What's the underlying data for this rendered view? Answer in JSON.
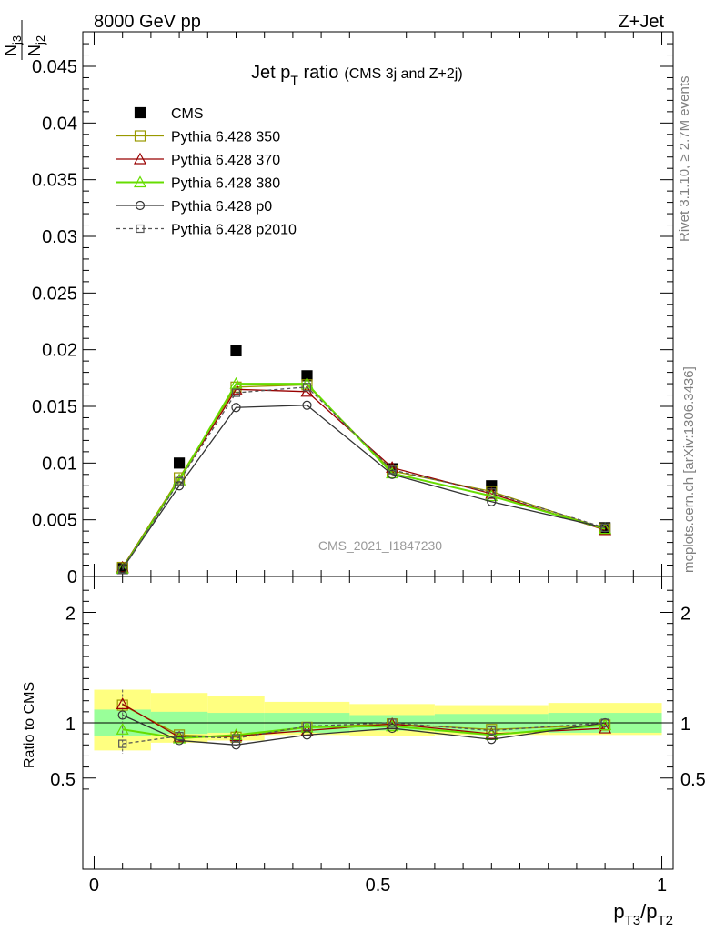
{
  "header": {
    "left": "8000 GeV pp",
    "right": "Z+Jet"
  },
  "side_labels": {
    "rivet": "Rivet 3.1.10, ≥ 2.7M events",
    "mcplots": "mcplots.cern.ch [arXiv:1306.3436]"
  },
  "watermark": "CMS_2021_I1847230",
  "chart_data": [
    {
      "type": "line",
      "title": "Jet p_T ratio",
      "title_main": "Jet p",
      "title_sub": "T",
      "title_main_after": " ratio",
      "title_suffix": "(CMS 3j and Z+2j)",
      "ylabel": "N_j3/N_j2",
      "ylim": [
        0,
        0.048
      ],
      "yticks": [
        "0",
        "0.005",
        "0.01",
        "0.015",
        "0.02",
        "0.025",
        "0.03",
        "0.035",
        "0.04",
        "0.045"
      ],
      "x": [
        0.05,
        0.15,
        0.25,
        0.375,
        0.525,
        0.7,
        0.9
      ],
      "legend_position": "top-left",
      "series": [
        {
          "name": "CMS",
          "values": [
            0.0007,
            0.01,
            0.0199,
            0.0177,
            0.0095,
            0.008,
            0.0043
          ],
          "color": "#000000",
          "marker": "filled-square"
        },
        {
          "name": "Pythia 6.428 350",
          "values": [
            0.0008,
            0.0087,
            0.0167,
            0.0169,
            0.0093,
            0.0075,
            0.0042
          ],
          "color": "#999900",
          "marker": "open-square"
        },
        {
          "name": "Pythia 6.428 370",
          "values": [
            0.0008,
            0.0085,
            0.0165,
            0.0163,
            0.0096,
            0.0073,
            0.0041
          ],
          "color": "#990000",
          "marker": "open-triangle"
        },
        {
          "name": "Pythia 6.428 380",
          "values": [
            0.0007,
            0.0085,
            0.017,
            0.017,
            0.0091,
            0.0071,
            0.0042
          ],
          "color": "#66dd00",
          "marker": "open-triangle"
        },
        {
          "name": "Pythia 6.428 p0",
          "values": [
            0.0007,
            0.008,
            0.0149,
            0.0151,
            0.009,
            0.0066,
            0.0043
          ],
          "color": "#333333",
          "marker": "open-circle"
        },
        {
          "name": "Pythia 6.428 p2010",
          "values": [
            0.0006,
            0.0084,
            0.0162,
            0.0167,
            0.0094,
            0.0074,
            0.0043
          ],
          "color": "#555555",
          "marker": "open-square-small",
          "dashed": true
        }
      ]
    },
    {
      "type": "line",
      "ylabel": "Ratio to CMS",
      "xlabel": "p_T3/p_T2",
      "ylim": [
        0.35,
        2.25
      ],
      "xlim": [
        -0.02,
        1.02
      ],
      "yticks": [
        "0.5",
        "1",
        "2"
      ],
      "xticks": [
        "0",
        "0.5",
        "1"
      ],
      "bands": [
        {
          "x0": 0.0,
          "x1": 0.1,
          "inner": [
            0.88,
            1.12
          ],
          "outer": [
            0.75,
            1.3
          ]
        },
        {
          "x0": 0.1,
          "x1": 0.2,
          "inner": [
            0.9,
            1.1
          ],
          "outer": [
            0.82,
            1.27
          ]
        },
        {
          "x0": 0.2,
          "x1": 0.3,
          "inner": [
            0.91,
            1.09
          ],
          "outer": [
            0.84,
            1.24
          ]
        },
        {
          "x0": 0.3,
          "x1": 0.45,
          "inner": [
            0.91,
            1.09
          ],
          "outer": [
            0.89,
            1.19
          ]
        },
        {
          "x0": 0.45,
          "x1": 0.6,
          "inner": [
            0.93,
            1.07
          ],
          "outer": [
            0.88,
            1.17
          ]
        },
        {
          "x0": 0.6,
          "x1": 0.8,
          "inner": [
            0.92,
            1.08
          ],
          "outer": [
            0.89,
            1.16
          ]
        },
        {
          "x0": 0.8,
          "x1": 1.0,
          "inner": [
            0.91,
            1.09
          ],
          "outer": [
            0.89,
            1.18
          ]
        }
      ],
      "series": [
        {
          "name": "Pythia 6.428 350",
          "values": [
            1.16,
            0.89,
            0.87,
            0.96,
            0.99,
            0.94,
            0.98
          ],
          "color": "#999900",
          "marker": "open-square"
        },
        {
          "name": "Pythia 6.428 370",
          "values": [
            1.17,
            0.87,
            0.88,
            0.93,
            0.99,
            0.9,
            0.95
          ],
          "color": "#990000",
          "marker": "open-triangle"
        },
        {
          "name": "Pythia 6.428 380",
          "values": [
            0.94,
            0.86,
            0.89,
            0.96,
            0.97,
            0.89,
            0.98
          ],
          "color": "#66dd00",
          "marker": "open-triangle"
        },
        {
          "name": "Pythia 6.428 p0",
          "values": [
            1.07,
            0.84,
            0.8,
            0.89,
            0.95,
            0.85,
            1.0
          ],
          "color": "#333333",
          "marker": "open-circle"
        },
        {
          "name": "Pythia 6.428 p2010",
          "values": [
            0.81,
            0.88,
            0.86,
            0.97,
            1.0,
            0.93,
            1.0
          ],
          "color": "#555555",
          "marker": "open-square-small",
          "dashed": true
        }
      ]
    }
  ]
}
